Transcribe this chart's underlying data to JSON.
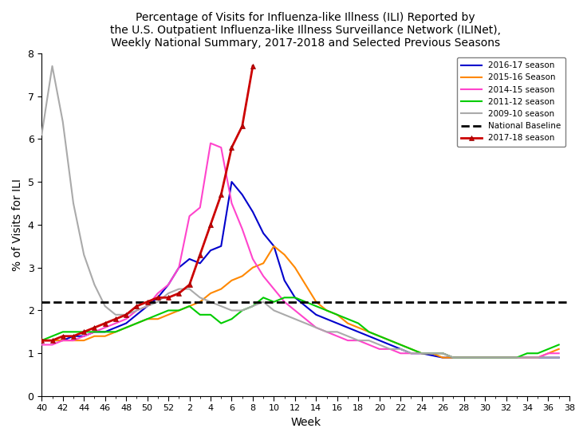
{
  "title": "Percentage of Visits for Influenza-like Illness (ILI) Reported by\nthe U.S. Outpatient Influenza-like Illness Surveillance Network (ILINet),\nWeekly National Summary, 2017-2018 and Selected Previous Seasons",
  "xlabel": "Week",
  "ylabel": "% of Visits for ILI",
  "ylim": [
    0,
    8
  ],
  "baseline": 2.2,
  "x_tick_labels": [
    "40",
    "42",
    "44",
    "46",
    "48",
    "50",
    "52",
    "2",
    "4",
    "6",
    "8",
    "10",
    "12",
    "14",
    "16",
    "18",
    "20",
    "22",
    "24",
    "26",
    "28",
    "30",
    "32",
    "34",
    "36",
    "38"
  ],
  "seasons": {
    "2016-17 season": {
      "color": "#0000cc",
      "marker": null,
      "lw": 1.5,
      "data_y": [
        1.3,
        1.3,
        1.3,
        1.4,
        1.4,
        1.5,
        1.5,
        1.6,
        1.7,
        1.9,
        2.1,
        2.3,
        2.6,
        3.0,
        3.2,
        3.1,
        3.4,
        3.5,
        5.0,
        4.7,
        4.3,
        3.8,
        3.5,
        2.7,
        2.3,
        2.1,
        1.9,
        1.8,
        1.7,
        1.6,
        1.5,
        1.4,
        1.3,
        1.2,
        1.1,
        1.0,
        1.0,
        0.95,
        0.9,
        0.9,
        0.9,
        0.9,
        0.9,
        0.9,
        0.9,
        0.9,
        0.9,
        0.9,
        0.9,
        0.9
      ]
    },
    "2015-16 Season": {
      "color": "#ff8800",
      "marker": null,
      "lw": 1.5,
      "data_y": [
        1.3,
        1.3,
        1.3,
        1.3,
        1.3,
        1.4,
        1.4,
        1.5,
        1.6,
        1.7,
        1.8,
        1.8,
        1.9,
        2.0,
        2.1,
        2.2,
        2.4,
        2.5,
        2.7,
        2.8,
        3.0,
        3.1,
        3.5,
        3.3,
        3.0,
        2.6,
        2.2,
        2.0,
        1.9,
        1.7,
        1.6,
        1.5,
        1.4,
        1.3,
        1.2,
        1.1,
        1.0,
        1.0,
        0.9,
        0.9,
        0.9,
        0.9,
        0.9,
        0.9,
        0.9,
        0.9,
        0.9,
        0.9,
        1.0,
        1.1
      ]
    },
    "2014-15 season": {
      "color": "#ff44cc",
      "marker": null,
      "lw": 1.5,
      "data_y": [
        1.2,
        1.2,
        1.3,
        1.3,
        1.4,
        1.5,
        1.6,
        1.7,
        1.8,
        2.0,
        2.1,
        2.4,
        2.6,
        3.0,
        4.2,
        4.4,
        5.9,
        5.8,
        4.5,
        3.9,
        3.2,
        2.8,
        2.5,
        2.2,
        2.0,
        1.8,
        1.6,
        1.5,
        1.4,
        1.3,
        1.3,
        1.2,
        1.1,
        1.1,
        1.0,
        1.0,
        1.0,
        1.0,
        1.0,
        0.9,
        0.9,
        0.9,
        0.9,
        0.9,
        0.9,
        0.9,
        0.9,
        0.9,
        1.0,
        1.0
      ]
    },
    "2011-12 season": {
      "color": "#00cc00",
      "marker": null,
      "lw": 1.5,
      "data_y": [
        1.3,
        1.4,
        1.5,
        1.5,
        1.5,
        1.5,
        1.5,
        1.5,
        1.6,
        1.7,
        1.8,
        1.9,
        2.0,
        2.0,
        2.1,
        1.9,
        1.9,
        1.7,
        1.8,
        2.0,
        2.1,
        2.3,
        2.2,
        2.3,
        2.3,
        2.2,
        2.1,
        2.0,
        1.9,
        1.8,
        1.7,
        1.5,
        1.4,
        1.3,
        1.2,
        1.1,
        1.0,
        1.0,
        1.0,
        0.9,
        0.9,
        0.9,
        0.9,
        0.9,
        0.9,
        0.9,
        1.0,
        1.0,
        1.1,
        1.2
      ]
    },
    "2009-10 season": {
      "color": "#aaaaaa",
      "marker": null,
      "lw": 1.5,
      "data_y": [
        6.1,
        7.7,
        6.4,
        4.5,
        3.3,
        2.6,
        2.1,
        1.9,
        1.9,
        2.0,
        2.1,
        2.2,
        2.4,
        2.5,
        2.5,
        2.3,
        2.2,
        2.1,
        2.0,
        2.0,
        2.1,
        2.2,
        2.0,
        1.9,
        1.8,
        1.7,
        1.6,
        1.5,
        1.5,
        1.4,
        1.3,
        1.3,
        1.2,
        1.1,
        1.1,
        1.0,
        1.0,
        1.0,
        1.0,
        0.9,
        0.9,
        0.9,
        0.9,
        0.9,
        0.9,
        0.9,
        0.9,
        0.9,
        0.9,
        0.9
      ]
    },
    "2017-18 season": {
      "color": "#cc0000",
      "marker": "^",
      "lw": 2.0,
      "data_y": [
        1.3,
        1.3,
        1.4,
        1.4,
        1.5,
        1.6,
        1.7,
        1.8,
        1.9,
        2.1,
        2.2,
        2.3,
        2.3,
        2.4,
        2.6,
        3.3,
        4.0,
        4.7,
        5.8,
        6.3,
        7.7
      ]
    }
  }
}
